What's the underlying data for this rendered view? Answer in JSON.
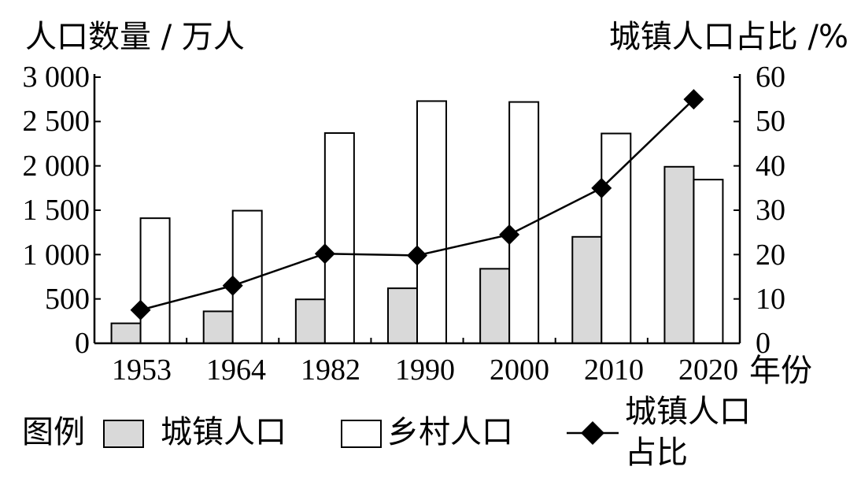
{
  "chart_data": {
    "type": "bar",
    "categories": [
      "1953",
      "1964",
      "1982",
      "1990",
      "2000",
      "2010",
      "2020"
    ],
    "series": [
      {
        "name": "城镇人口",
        "type": "bar",
        "axis": "left",
        "color": "#d9d9d9",
        "values": [
          225,
          360,
          495,
          620,
          840,
          1200,
          1990
        ]
      },
      {
        "name": "乡村人口",
        "type": "bar",
        "axis": "left",
        "color": "#ffffff",
        "values": [
          1410,
          1495,
          2370,
          2730,
          2720,
          2365,
          1845
        ]
      },
      {
        "name": "城镇人口占比",
        "type": "line",
        "axis": "right",
        "color": "#000000",
        "values": [
          7.5,
          13.0,
          20.2,
          19.8,
          24.5,
          35.0,
          55.0
        ]
      }
    ],
    "ylabel": "人口数量 / 万人",
    "y2label": "城镇人口占比 /%",
    "xlabel": "年份",
    "ylim": [
      0,
      3000
    ],
    "y2lim": [
      0,
      60
    ],
    "yticks": [
      "3 000",
      "2 500",
      "2 000",
      "1 500",
      "1 000",
      "500",
      "0"
    ],
    "y2ticks": [
      "60",
      "50",
      "40",
      "30",
      "20",
      "10",
      "0"
    ],
    "legend_title": "图例",
    "legend": [
      "城镇人口",
      "乡村人口",
      "城镇人口占比"
    ]
  }
}
